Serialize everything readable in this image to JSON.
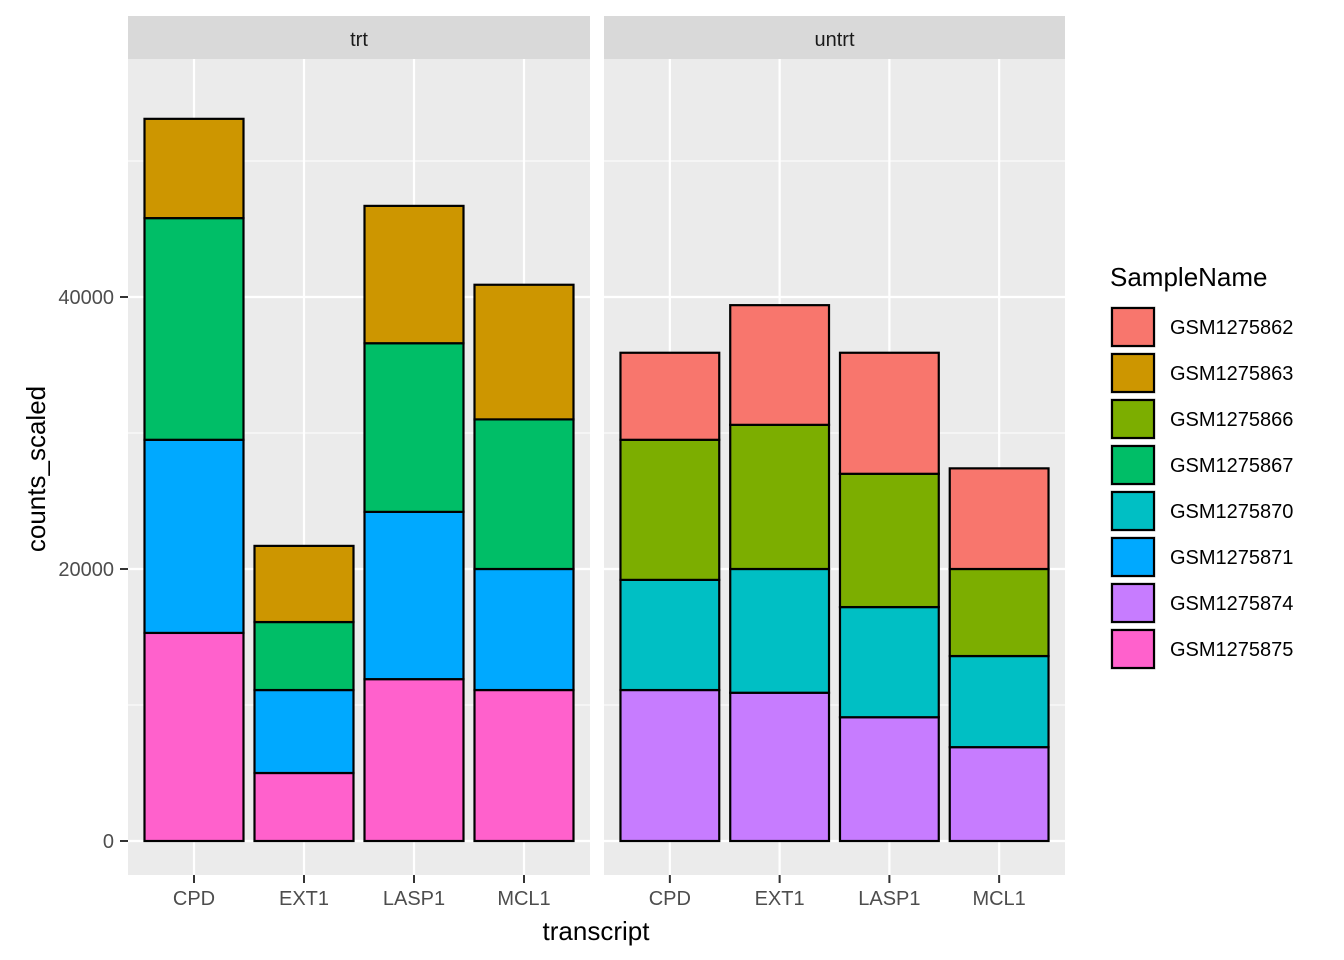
{
  "chart_data": {
    "type": "bar",
    "stacked": true,
    "xlabel": "transcript",
    "ylabel": "counts_scaled",
    "ylim": [
      -2500,
      57500
    ],
    "yticks": [
      0,
      20000,
      40000
    ],
    "ytick_labels": [
      "0",
      "20000",
      "40000"
    ],
    "legend": {
      "title": "SampleName",
      "position": "right",
      "entries": [
        {
          "name": "GSM1275862",
          "color": "#F8766D"
        },
        {
          "name": "GSM1275863",
          "color": "#CD9600"
        },
        {
          "name": "GSM1275866",
          "color": "#7CAE00"
        },
        {
          "name": "GSM1275867",
          "color": "#00BE67"
        },
        {
          "name": "GSM1275870",
          "color": "#00BFC4"
        },
        {
          "name": "GSM1275871",
          "color": "#00A9FF"
        },
        {
          "name": "GSM1275874",
          "color": "#C77CFF"
        },
        {
          "name": "GSM1275875",
          "color": "#FF61CC"
        }
      ]
    },
    "facets": [
      {
        "name": "trt",
        "categories": [
          "CPD",
          "EXT1",
          "LASP1",
          "MCL1"
        ],
        "stacks": [
          {
            "category": "CPD",
            "segments": [
              {
                "sample": "GSM1275875",
                "value": 15300
              },
              {
                "sample": "GSM1275871",
                "value": 14200
              },
              {
                "sample": "GSM1275867",
                "value": 16300
              },
              {
                "sample": "GSM1275863",
                "value": 7300
              }
            ]
          },
          {
            "category": "EXT1",
            "segments": [
              {
                "sample": "GSM1275875",
                "value": 5000
              },
              {
                "sample": "GSM1275871",
                "value": 6100
              },
              {
                "sample": "GSM1275867",
                "value": 5000
              },
              {
                "sample": "GSM1275863",
                "value": 5600
              }
            ]
          },
          {
            "category": "LASP1",
            "segments": [
              {
                "sample": "GSM1275875",
                "value": 11900
              },
              {
                "sample": "GSM1275871",
                "value": 12300
              },
              {
                "sample": "GSM1275867",
                "value": 12400
              },
              {
                "sample": "GSM1275863",
                "value": 10100
              }
            ]
          },
          {
            "category": "MCL1",
            "segments": [
              {
                "sample": "GSM1275875",
                "value": 11100
              },
              {
                "sample": "GSM1275871",
                "value": 8900
              },
              {
                "sample": "GSM1275867",
                "value": 11000
              },
              {
                "sample": "GSM1275863",
                "value": 9900
              }
            ]
          }
        ]
      },
      {
        "name": "untrt",
        "categories": [
          "CPD",
          "EXT1",
          "LASP1",
          "MCL1"
        ],
        "stacks": [
          {
            "category": "CPD",
            "segments": [
              {
                "sample": "GSM1275874",
                "value": 11100
              },
              {
                "sample": "GSM1275870",
                "value": 8100
              },
              {
                "sample": "GSM1275866",
                "value": 10300
              },
              {
                "sample": "GSM1275862",
                "value": 6400
              }
            ]
          },
          {
            "category": "EXT1",
            "segments": [
              {
                "sample": "GSM1275874",
                "value": 10900
              },
              {
                "sample": "GSM1275870",
                "value": 9100
              },
              {
                "sample": "GSM1275866",
                "value": 10600
              },
              {
                "sample": "GSM1275862",
                "value": 8800
              }
            ]
          },
          {
            "category": "LASP1",
            "segments": [
              {
                "sample": "GSM1275874",
                "value": 9100
              },
              {
                "sample": "GSM1275870",
                "value": 8100
              },
              {
                "sample": "GSM1275866",
                "value": 9800
              },
              {
                "sample": "GSM1275862",
                "value": 8900
              }
            ]
          },
          {
            "category": "MCL1",
            "segments": [
              {
                "sample": "GSM1275874",
                "value": 6900
              },
              {
                "sample": "GSM1275870",
                "value": 6700
              },
              {
                "sample": "GSM1275866",
                "value": 6400
              },
              {
                "sample": "GSM1275862",
                "value": 7400
              }
            ]
          }
        ]
      }
    ]
  }
}
